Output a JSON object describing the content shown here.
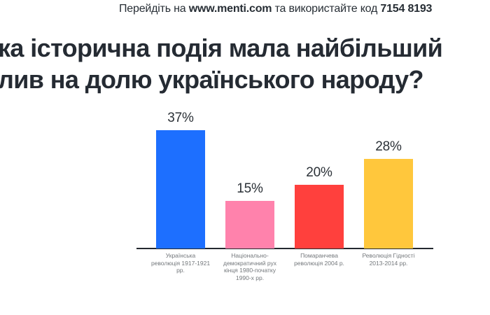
{
  "header": {
    "prefix": "Перейдіть на ",
    "url": "www.menti.com",
    "middle": " та використайте код ",
    "code": "7154 8193"
  },
  "title": {
    "line1": "ка історична подія мала найбільший",
    "line2": "лив на долю українського народу?"
  },
  "chart_data": {
    "type": "bar",
    "title_visible": "ка історична подія мала найбільший лив на долю українського народу?",
    "unit": "%",
    "categories": [
      "Українська революція 1917-1921 рр.",
      "Національно-демократичний рух кінця 1980-початку 1990-х рр.",
      "Помаранчева революція 2004 р.",
      "Революція Гідності 2013-2014 рр."
    ],
    "label_lines": [
      [
        "Українська",
        "революція 1917-1921",
        "рр."
      ],
      [
        "Національно-",
        "демократичний рух",
        "кінця 1980-початку",
        "1990-х рр."
      ],
      [
        "Помаранчева",
        "революція 2004 р."
      ],
      [
        "Революція Гідності",
        "2013-2014 рр."
      ]
    ],
    "values": [
      37,
      15,
      20,
      28
    ],
    "value_labels": [
      "37%",
      "15%",
      "20%",
      "28%"
    ],
    "colors": [
      "#1d6fff",
      "#ff82ac",
      "#ff403d",
      "#ffc73c"
    ],
    "axis_color": "#24292f",
    "text_color": "#2b3137",
    "label_color": "#73777b",
    "ylim": [
      0,
      40
    ],
    "grid": false,
    "legend": "none"
  }
}
